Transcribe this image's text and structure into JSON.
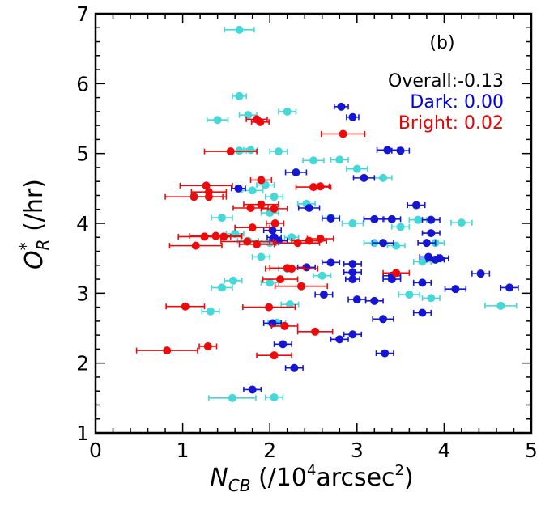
{
  "chart_data": {
    "type": "scatter",
    "panel_label": "(b)",
    "xlabel": {
      "main": "N",
      "sub": "CB",
      "unit_open": " (/10",
      "sup": "4",
      "unit_mid": "arcsec",
      "sup2": "2",
      "unit_close": ")"
    },
    "ylabel": {
      "main": "O",
      "sup": "*",
      "sub": "R",
      "unit": " (/hr)"
    },
    "xlim": [
      0,
      5
    ],
    "ylim": [
      1,
      7
    ],
    "x_ticks": [
      "0",
      "1",
      "2",
      "3",
      "4",
      "5"
    ],
    "y_ticks": [
      "1",
      "2",
      "3",
      "4",
      "5",
      "6",
      "7"
    ],
    "annotations": {
      "overall": {
        "text": "Overall:-0.13",
        "color": "#000000"
      },
      "dark": {
        "text": "Dark: 0.00",
        "color": "#0000dd"
      },
      "bright": {
        "text": "Bright: 0.02",
        "color": "#ee0000"
      }
    },
    "series": [
      {
        "color": "#44d8d8",
        "points": [
          {
            "x": 1.65,
            "y": 6.77,
            "err": 0.17
          },
          {
            "x": 1.65,
            "y": 5.82,
            "err": 0.08
          },
          {
            "x": 1.75,
            "y": 5.55,
            "err": 0.1
          },
          {
            "x": 1.4,
            "y": 5.48,
            "err": 0.12
          },
          {
            "x": 2.2,
            "y": 5.6,
            "err": 0.1
          },
          {
            "x": 1.65,
            "y": 5.04,
            "err": 0.08
          },
          {
            "x": 1.78,
            "y": 5.05,
            "err": 0.08
          },
          {
            "x": 2.1,
            "y": 5.03,
            "err": 0.1
          },
          {
            "x": 2.5,
            "y": 4.9,
            "err": 0.12
          },
          {
            "x": 2.8,
            "y": 4.91,
            "err": 0.1
          },
          {
            "x": 3.0,
            "y": 4.78,
            "err": 0.12
          },
          {
            "x": 3.3,
            "y": 4.65,
            "err": 0.1
          },
          {
            "x": 1.8,
            "y": 4.47,
            "err": 0.12
          },
          {
            "x": 1.95,
            "y": 4.55,
            "err": 0.1
          },
          {
            "x": 2.05,
            "y": 4.38,
            "err": 0.1
          },
          {
            "x": 2.42,
            "y": 4.28,
            "err": 0.1
          },
          {
            "x": 1.45,
            "y": 4.08,
            "err": 0.12
          },
          {
            "x": 2.0,
            "y": 4.15,
            "err": 0.1
          },
          {
            "x": 2.7,
            "y": 4.08,
            "err": 0.1
          },
          {
            "x": 2.95,
            "y": 4.0,
            "err": 0.12
          },
          {
            "x": 3.5,
            "y": 3.95,
            "err": 0.1
          },
          {
            "x": 3.7,
            "y": 4.05,
            "err": 0.1
          },
          {
            "x": 4.2,
            "y": 4.01,
            "err": 0.12
          },
          {
            "x": 1.6,
            "y": 3.85,
            "err": 0.1
          },
          {
            "x": 1.75,
            "y": 3.75,
            "err": 0.12
          },
          {
            "x": 2.0,
            "y": 3.72,
            "err": 0.1
          },
          {
            "x": 2.25,
            "y": 3.8,
            "err": 0.08
          },
          {
            "x": 3.2,
            "y": 3.72,
            "err": 0.12
          },
          {
            "x": 3.45,
            "y": 3.68,
            "err": 0.1
          },
          {
            "x": 3.9,
            "y": 3.72,
            "err": 0.1
          },
          {
            "x": 3.75,
            "y": 3.45,
            "err": 0.1
          },
          {
            "x": 1.9,
            "y": 3.52,
            "err": 0.1
          },
          {
            "x": 2.2,
            "y": 3.35,
            "err": 0.1
          },
          {
            "x": 1.58,
            "y": 3.18,
            "err": 0.1
          },
          {
            "x": 1.45,
            "y": 3.08,
            "err": 0.12
          },
          {
            "x": 2.0,
            "y": 3.15,
            "err": 0.1
          },
          {
            "x": 2.6,
            "y": 3.25,
            "err": 0.1
          },
          {
            "x": 3.6,
            "y": 2.98,
            "err": 0.12
          },
          {
            "x": 3.85,
            "y": 2.93,
            "err": 0.1
          },
          {
            "x": 1.32,
            "y": 2.74,
            "err": 0.1
          },
          {
            "x": 2.23,
            "y": 2.84,
            "err": 0.1
          },
          {
            "x": 4.65,
            "y": 2.82,
            "err": 0.18
          },
          {
            "x": 2.08,
            "y": 2.58,
            "err": 0.1
          },
          {
            "x": 1.57,
            "y": 1.5,
            "err": 0.27
          },
          {
            "x": 2.05,
            "y": 1.51,
            "err": 0.1
          }
        ]
      },
      {
        "color": "#1515d4",
        "points": [
          {
            "x": 2.82,
            "y": 5.67,
            "err": 0.08
          },
          {
            "x": 2.95,
            "y": 5.52,
            "err": 0.07
          },
          {
            "x": 3.35,
            "y": 5.05,
            "err": 0.12
          },
          {
            "x": 3.5,
            "y": 5.04,
            "err": 0.1
          },
          {
            "x": 3.08,
            "y": 4.65,
            "err": 0.12
          },
          {
            "x": 2.3,
            "y": 4.73,
            "err": 0.12
          },
          {
            "x": 1.64,
            "y": 4.5,
            "err": 0.08
          },
          {
            "x": 2.45,
            "y": 4.22,
            "err": 0.12
          },
          {
            "x": 3.68,
            "y": 4.26,
            "err": 0.1
          },
          {
            "x": 2.7,
            "y": 4.07,
            "err": 0.1
          },
          {
            "x": 3.2,
            "y": 4.06,
            "err": 0.12
          },
          {
            "x": 3.4,
            "y": 4.06,
            "err": 0.1
          },
          {
            "x": 3.85,
            "y": 4.05,
            "err": 0.1
          },
          {
            "x": 2.03,
            "y": 3.9,
            "err": 0.1
          },
          {
            "x": 3.85,
            "y": 3.86,
            "err": 0.1
          },
          {
            "x": 2.1,
            "y": 3.75,
            "err": 0.1
          },
          {
            "x": 2.05,
            "y": 3.8,
            "err": 0.08
          },
          {
            "x": 3.3,
            "y": 3.72,
            "err": 0.12
          },
          {
            "x": 3.8,
            "y": 3.72,
            "err": 0.1
          },
          {
            "x": 3.82,
            "y": 3.52,
            "err": 0.1
          },
          {
            "x": 3.95,
            "y": 3.5,
            "err": 0.1
          },
          {
            "x": 3.9,
            "y": 3.48,
            "err": 0.1
          },
          {
            "x": 2.7,
            "y": 3.44,
            "err": 0.1
          },
          {
            "x": 2.95,
            "y": 3.42,
            "err": 0.1
          },
          {
            "x": 2.42,
            "y": 3.37,
            "err": 0.1
          },
          {
            "x": 2.95,
            "y": 3.3,
            "err": 0.1
          },
          {
            "x": 3.4,
            "y": 3.25,
            "err": 0.1
          },
          {
            "x": 3.4,
            "y": 3.2,
            "err": 0.1
          },
          {
            "x": 4.42,
            "y": 3.28,
            "err": 0.1
          },
          {
            "x": 2.95,
            "y": 3.2,
            "err": 0.08
          },
          {
            "x": 3.75,
            "y": 3.15,
            "err": 0.1
          },
          {
            "x": 4.13,
            "y": 3.06,
            "err": 0.12
          },
          {
            "x": 4.75,
            "y": 3.08,
            "err": 0.1
          },
          {
            "x": 2.62,
            "y": 2.98,
            "err": 0.1
          },
          {
            "x": 3.0,
            "y": 2.91,
            "err": 0.1
          },
          {
            "x": 3.2,
            "y": 2.89,
            "err": 0.1
          },
          {
            "x": 3.75,
            "y": 2.72,
            "err": 0.1
          },
          {
            "x": 3.3,
            "y": 2.63,
            "err": 0.12
          },
          {
            "x": 2.03,
            "y": 2.57,
            "err": 0.1
          },
          {
            "x": 2.95,
            "y": 2.41,
            "err": 0.1
          },
          {
            "x": 2.8,
            "y": 2.34,
            "err": 0.1
          },
          {
            "x": 2.15,
            "y": 2.27,
            "err": 0.1
          },
          {
            "x": 3.32,
            "y": 2.14,
            "err": 0.1
          },
          {
            "x": 2.28,
            "y": 1.93,
            "err": 0.1
          },
          {
            "x": 1.8,
            "y": 1.62,
            "err": 0.1
          }
        ]
      },
      {
        "color": "#ee0a0a",
        "points": [
          {
            "x": 1.85,
            "y": 5.49,
            "err": 0.12
          },
          {
            "x": 1.89,
            "y": 5.45,
            "err": 0.1
          },
          {
            "x": 2.84,
            "y": 5.28,
            "err": 0.25
          },
          {
            "x": 1.55,
            "y": 5.03,
            "err": 0.3
          },
          {
            "x": 1.9,
            "y": 4.62,
            "err": 0.12
          },
          {
            "x": 2.5,
            "y": 4.52,
            "err": 0.2
          },
          {
            "x": 2.58,
            "y": 4.53,
            "err": 0.1
          },
          {
            "x": 1.27,
            "y": 4.54,
            "err": 0.3
          },
          {
            "x": 1.3,
            "y": 4.45,
            "err": 0.2
          },
          {
            "x": 1.13,
            "y": 4.38,
            "err": 0.33
          },
          {
            "x": 1.3,
            "y": 4.38,
            "err": 0.2
          },
          {
            "x": 1.9,
            "y": 4.27,
            "err": 0.2
          },
          {
            "x": 1.78,
            "y": 4.22,
            "err": 0.2
          },
          {
            "x": 2.05,
            "y": 4.21,
            "err": 0.15
          },
          {
            "x": 2.06,
            "y": 4.0,
            "err": 0.1
          },
          {
            "x": 1.8,
            "y": 3.94,
            "err": 0.2
          },
          {
            "x": 1.25,
            "y": 3.81,
            "err": 0.3
          },
          {
            "x": 1.38,
            "y": 3.82,
            "err": 0.3
          },
          {
            "x": 1.47,
            "y": 3.81,
            "err": 0.2
          },
          {
            "x": 1.74,
            "y": 3.74,
            "err": 0.3
          },
          {
            "x": 1.85,
            "y": 3.7,
            "err": 0.2
          },
          {
            "x": 2.32,
            "y": 3.72,
            "err": 0.25
          },
          {
            "x": 2.45,
            "y": 3.75,
            "err": 0.2
          },
          {
            "x": 2.58,
            "y": 3.78,
            "err": 0.15
          },
          {
            "x": 1.15,
            "y": 3.68,
            "err": 0.3
          },
          {
            "x": 2.25,
            "y": 3.35,
            "err": 0.3
          },
          {
            "x": 2.2,
            "y": 3.36,
            "err": 0.2
          },
          {
            "x": 3.45,
            "y": 3.29,
            "err": 0.15
          },
          {
            "x": 2.12,
            "y": 3.2,
            "err": 0.2
          },
          {
            "x": 2.36,
            "y": 3.1,
            "err": 0.3
          },
          {
            "x": 1.03,
            "y": 2.81,
            "err": 0.22
          },
          {
            "x": 1.99,
            "y": 2.8,
            "err": 0.3
          },
          {
            "x": 2.17,
            "y": 2.53,
            "err": 0.15
          },
          {
            "x": 2.52,
            "y": 2.45,
            "err": 0.2
          },
          {
            "x": 1.29,
            "y": 2.24,
            "err": 0.1
          },
          {
            "x": 0.82,
            "y": 2.18,
            "err": 0.35
          },
          {
            "x": 2.05,
            "y": 2.11,
            "err": 0.2
          }
        ]
      }
    ]
  }
}
